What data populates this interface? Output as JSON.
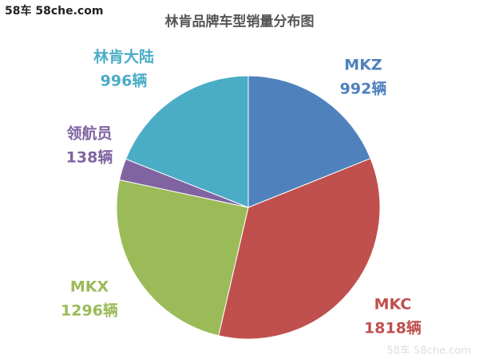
{
  "watermarks": [
    "58车  58che.com",
    "58车  58che.com"
  ],
  "chart_data": {
    "type": "pie",
    "title": "林肯品牌车型销量分布图",
    "categories": [
      "MKZ",
      "MKC",
      "MKX",
      "领航员",
      "林肯大陆"
    ],
    "values": [
      992,
      1818,
      1296,
      138,
      996
    ],
    "value_labels": [
      "992辆",
      "1818辆",
      "1296辆",
      "138辆",
      "996辆"
    ],
    "colors": [
      "#4f81bd",
      "#c0504d",
      "#9bbb59",
      "#8064a2",
      "#4bacc6"
    ]
  }
}
